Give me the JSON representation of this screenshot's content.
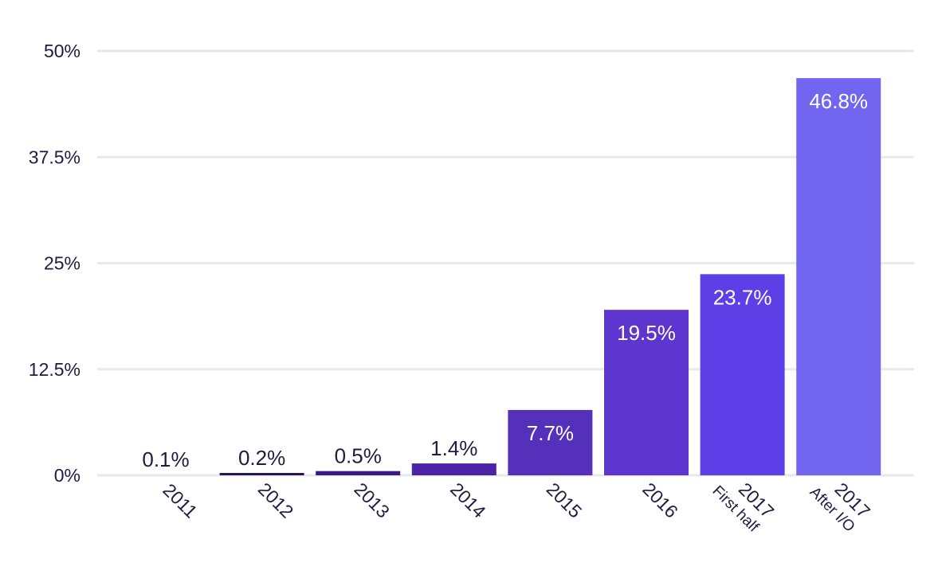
{
  "chart_data": {
    "type": "bar",
    "title": "",
    "xlabel": "",
    "ylabel": "",
    "ylim": [
      0,
      50
    ],
    "yticks": [
      "0%",
      "12.5%",
      "25%",
      "37.5%",
      "50%"
    ],
    "ytick_values": [
      0,
      12.5,
      25,
      37.5,
      50
    ],
    "grid": true,
    "categories": [
      {
        "label": "2011",
        "sub": ""
      },
      {
        "label": "2012",
        "sub": ""
      },
      {
        "label": "2013",
        "sub": ""
      },
      {
        "label": "2014",
        "sub": ""
      },
      {
        "label": "2015",
        "sub": ""
      },
      {
        "label": "2016",
        "sub": ""
      },
      {
        "label": "2017",
        "sub": "First half"
      },
      {
        "label": "2017",
        "sub": "After I/O"
      }
    ],
    "values": [
      0.1,
      0.2,
      0.5,
      1.4,
      7.7,
      19.5,
      23.7,
      46.8
    ],
    "value_labels": [
      "0.1%",
      "0.2%",
      "0.5%",
      "1.4%",
      "7.7%",
      "19.5%",
      "23.7%",
      "46.8%"
    ],
    "colors": [
      "#2a1359",
      "#2a1359",
      "#3b1a82",
      "#4a23a6",
      "#5530bb",
      "#5e35cf",
      "#5c3fe6",
      "#7266f0"
    ],
    "text_colors": {
      "dark": "#231942",
      "light": "#ffffff"
    },
    "grid_color": "#e8e8f0"
  }
}
